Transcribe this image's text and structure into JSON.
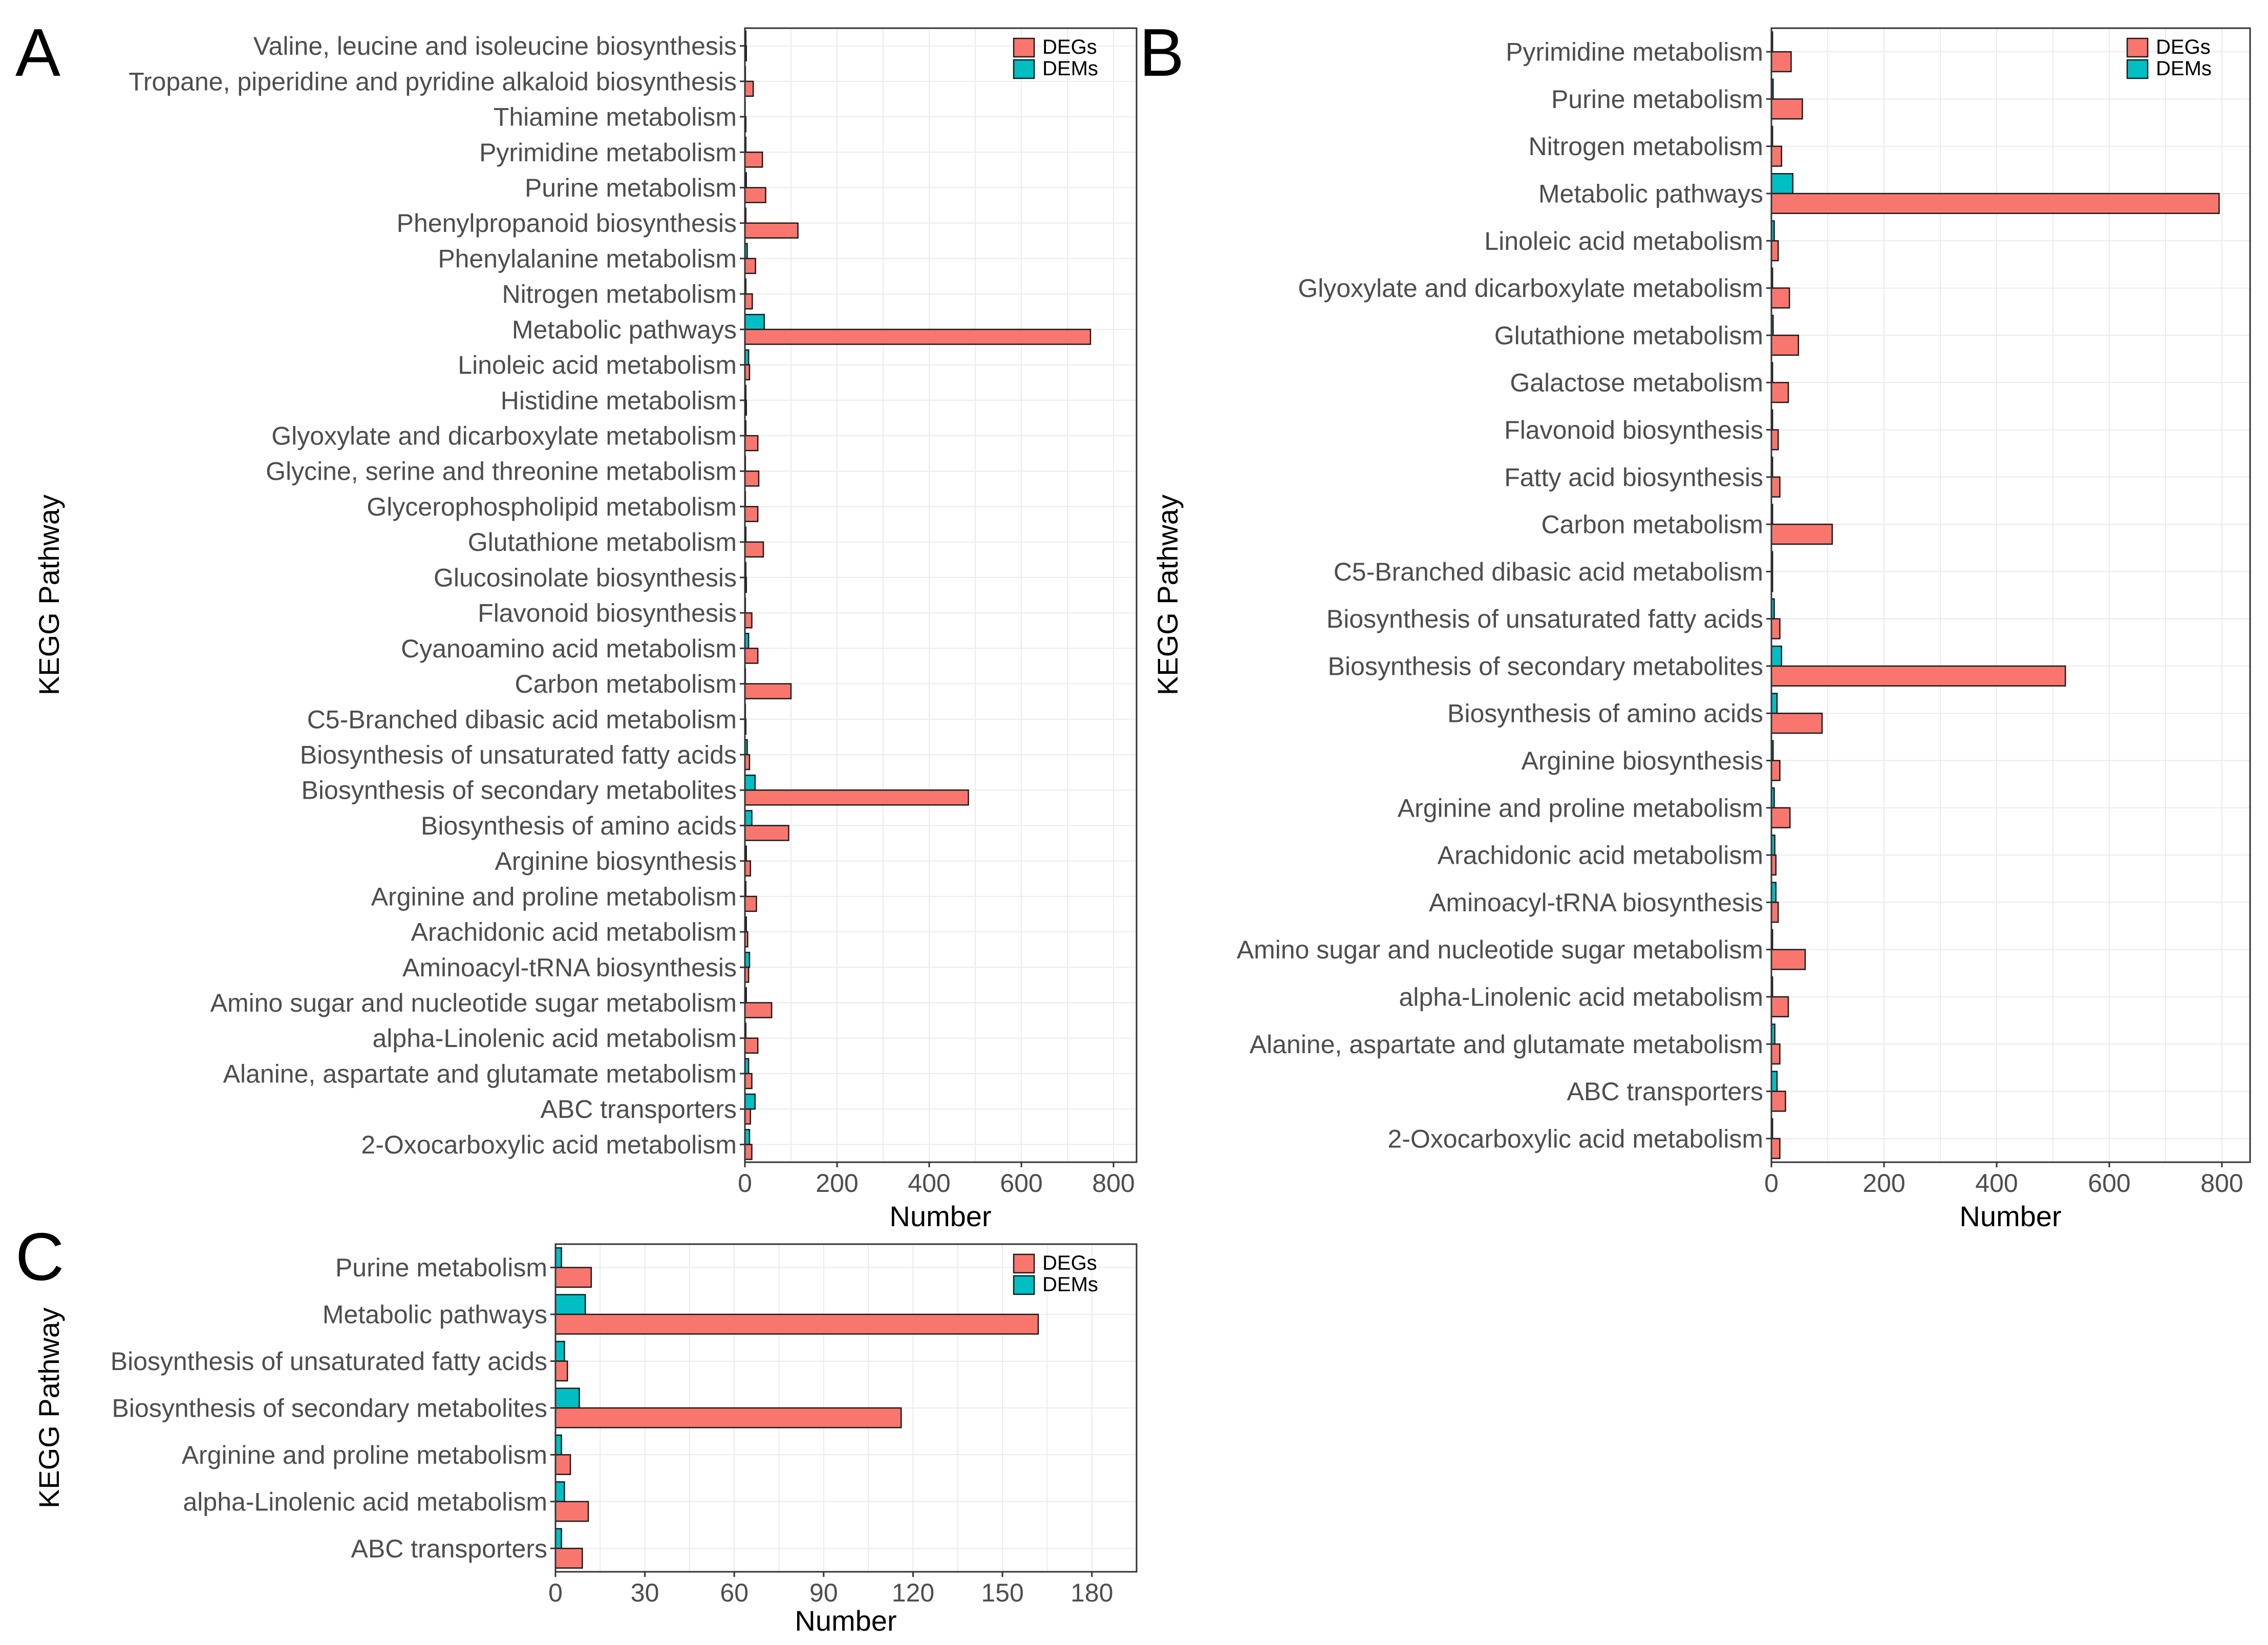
{
  "chart_data": [
    {
      "panel": "A",
      "type": "bar",
      "orientation": "horizontal",
      "ylabel": "KEGG Pathway",
      "xlabel": "Number",
      "xlim": [
        0,
        850
      ],
      "xticks": [
        0,
        200,
        400,
        600,
        800
      ],
      "grid": true,
      "legend_position": "top-right",
      "categories": [
        "Valine, leucine and isoleucine biosynthesis",
        "Tropane, piperidine and pyridine alkaloid biosynthesis",
        "Thiamine metabolism",
        "Pyrimidine metabolism",
        "Purine metabolism",
        "Phenylpropanoid biosynthesis",
        "Phenylalanine metabolism",
        "Nitrogen metabolism",
        "Metabolic pathways",
        "Linoleic acid metabolism",
        "Histidine metabolism",
        "Glyoxylate and dicarboxylate metabolism",
        "Glycine, serine and threonine metabolism",
        "Glycerophospholipid metabolism",
        "Glutathione metabolism",
        "Glucosinolate biosynthesis",
        "Flavonoid biosynthesis",
        "Cyanoamino acid metabolism",
        "Carbon metabolism",
        "C5-Branched dibasic acid metabolism",
        "Biosynthesis of unsaturated fatty acids",
        "Biosynthesis of secondary metabolites",
        "Biosynthesis of amino acids",
        "Arginine biosynthesis",
        "Arginine and proline metabolism",
        "Arachidonic acid metabolism",
        "Aminoacyl-tRNA biosynthesis",
        "Amino sugar and nucleotide sugar metabolism",
        "alpha-Linolenic acid metabolism",
        "Alanine, aspartate and glutamate metabolism",
        "ABC transporters",
        "2-Oxocarboxylic acid metabolism"
      ],
      "series": [
        {
          "name": "DEGs",
          "color": "#F8766D",
          "values": [
            3,
            18,
            2,
            38,
            45,
            115,
            23,
            16,
            750,
            10,
            3,
            28,
            30,
            28,
            40,
            3,
            15,
            28,
            100,
            2,
            10,
            485,
            95,
            12,
            25,
            6,
            8,
            58,
            28,
            15,
            12,
            15
          ]
        },
        {
          "name": "DEMs",
          "color": "#00BFC4",
          "values": [
            2,
            1,
            0,
            2,
            3,
            2,
            5,
            2,
            42,
            8,
            2,
            2,
            1,
            1,
            2,
            2,
            1,
            8,
            1,
            1,
            5,
            22,
            15,
            3,
            2,
            3,
            10,
            3,
            2,
            8,
            22,
            10
          ]
        }
      ]
    },
    {
      "panel": "B",
      "type": "bar",
      "orientation": "horizontal",
      "ylabel": "KEGG Pathway",
      "xlabel": "Number",
      "xlim": [
        0,
        850
      ],
      "xticks": [
        0,
        200,
        400,
        600,
        800
      ],
      "grid": true,
      "legend_position": "top-right",
      "categories": [
        "Pyrimidine metabolism",
        "Purine metabolism",
        "Nitrogen metabolism",
        "Metabolic pathways",
        "Linoleic acid metabolism",
        "Glyoxylate and dicarboxylate metabolism",
        "Glutathione metabolism",
        "Galactose metabolism",
        "Flavonoid biosynthesis",
        "Fatty acid biosynthesis",
        "Carbon metabolism",
        "C5-Branched dibasic acid metabolism",
        "Biosynthesis of unsaturated fatty acids",
        "Biosynthesis of secondary metabolites",
        "Biosynthesis of amino acids",
        "Arginine biosynthesis",
        "Arginine and proline metabolism",
        "Arachidonic acid metabolism",
        "Aminoacyl-tRNA biosynthesis",
        "Amino sugar and nucleotide sugar metabolism",
        "alpha-Linolenic acid metabolism",
        "Alanine, aspartate and glutamate metabolism",
        "ABC transporters",
        "2-Oxocarboxylic acid metabolism"
      ],
      "series": [
        {
          "name": "DEGs",
          "color": "#F8766D",
          "values": [
            35,
            55,
            18,
            795,
            12,
            32,
            48,
            30,
            12,
            15,
            108,
            2,
            15,
            522,
            90,
            15,
            33,
            8,
            12,
            60,
            30,
            15,
            25,
            15
          ]
        },
        {
          "name": "DEMs",
          "color": "#00BFC4",
          "values": [
            2,
            3,
            2,
            38,
            5,
            2,
            3,
            2,
            2,
            2,
            2,
            2,
            5,
            18,
            10,
            3,
            5,
            6,
            8,
            2,
            2,
            6,
            10,
            2
          ]
        }
      ]
    },
    {
      "panel": "C",
      "type": "bar",
      "orientation": "horizontal",
      "ylabel": "KEGG Pathway",
      "xlabel": "Number",
      "xlim": [
        0,
        195
      ],
      "xticks": [
        0,
        30,
        60,
        90,
        120,
        150,
        180
      ],
      "grid": true,
      "legend_position": "top-right",
      "categories": [
        "Purine metabolism",
        "Metabolic pathways",
        "Biosynthesis of unsaturated fatty acids",
        "Biosynthesis of secondary metabolites",
        "Arginine and proline metabolism",
        "alpha-Linolenic acid metabolism",
        "ABC transporters"
      ],
      "series": [
        {
          "name": "DEGs",
          "color": "#F8766D",
          "values": [
            12,
            162,
            4,
            116,
            5,
            11,
            9
          ]
        },
        {
          "name": "DEMs",
          "color": "#00BFC4",
          "values": [
            2,
            10,
            3,
            8,
            2,
            3,
            2
          ]
        }
      ]
    }
  ]
}
